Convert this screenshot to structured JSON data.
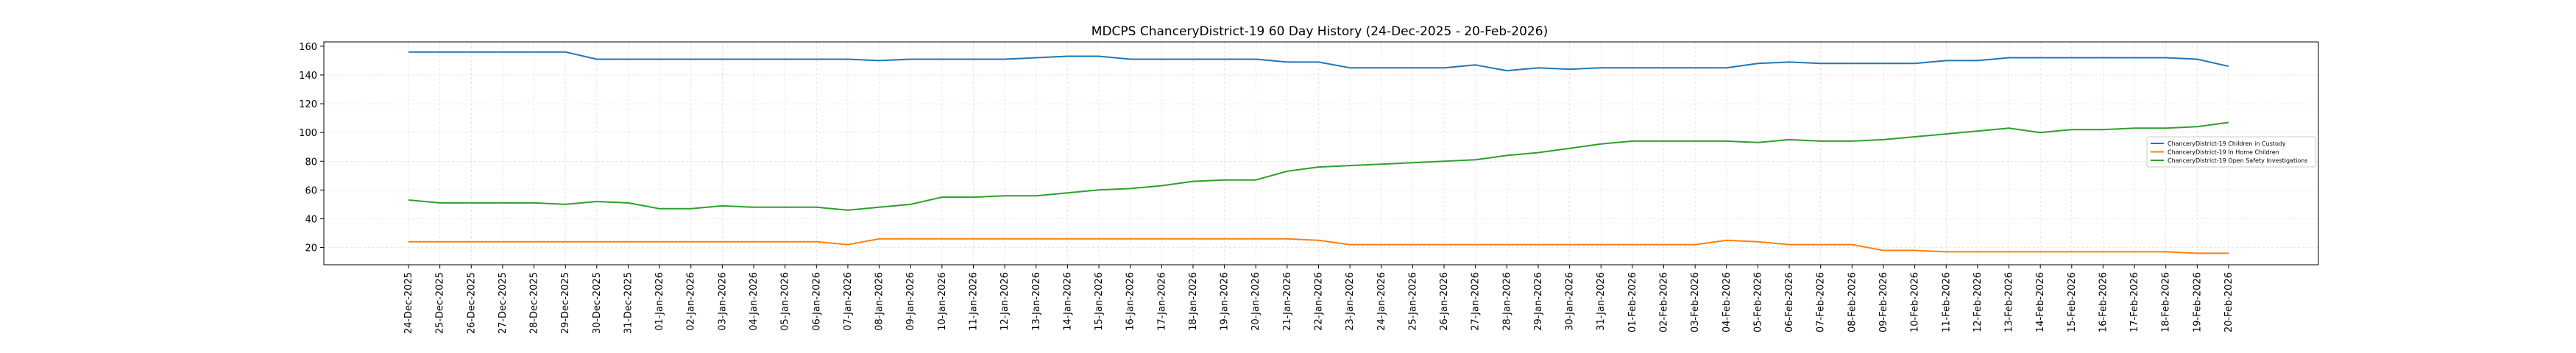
{
  "chart_data": {
    "type": "line",
    "title": "MDCPS ChanceryDistrict-19 60 Day History (24-Dec-2025 - 20-Feb-2026)",
    "xlabel": "",
    "ylabel": "",
    "ylim": [
      8,
      163
    ],
    "yticks": [
      20,
      40,
      60,
      80,
      100,
      120,
      140,
      160
    ],
    "grid": true,
    "legend_position": "center-right",
    "categories": [
      "24-Dec-2025",
      "25-Dec-2025",
      "26-Dec-2025",
      "27-Dec-2025",
      "28-Dec-2025",
      "29-Dec-2025",
      "30-Dec-2025",
      "31-Dec-2025",
      "01-Jan-2026",
      "02-Jan-2026",
      "03-Jan-2026",
      "04-Jan-2026",
      "05-Jan-2026",
      "06-Jan-2026",
      "07-Jan-2026",
      "08-Jan-2026",
      "09-Jan-2026",
      "10-Jan-2026",
      "11-Jan-2026",
      "12-Jan-2026",
      "13-Jan-2026",
      "14-Jan-2026",
      "15-Jan-2026",
      "16-Jan-2026",
      "17-Jan-2026",
      "18-Jan-2026",
      "19-Jan-2026",
      "20-Jan-2026",
      "21-Jan-2026",
      "22-Jan-2026",
      "23-Jan-2026",
      "24-Jan-2026",
      "25-Jan-2026",
      "26-Jan-2026",
      "27-Jan-2026",
      "28-Jan-2026",
      "29-Jan-2026",
      "30-Jan-2026",
      "31-Jan-2026",
      "01-Feb-2026",
      "02-Feb-2026",
      "03-Feb-2026",
      "04-Feb-2026",
      "05-Feb-2026",
      "06-Feb-2026",
      "07-Feb-2026",
      "08-Feb-2026",
      "09-Feb-2026",
      "10-Feb-2026",
      "11-Feb-2026",
      "12-Feb-2026",
      "13-Feb-2026",
      "14-Feb-2026",
      "15-Feb-2026",
      "16-Feb-2026",
      "17-Feb-2026",
      "18-Feb-2026",
      "19-Feb-2026",
      "20-Feb-2026"
    ],
    "series": [
      {
        "name": "ChanceryDistrict-19 Children in Custody",
        "color": "#1f77b4",
        "values": [
          156,
          156,
          156,
          156,
          156,
          156,
          151,
          151,
          151,
          151,
          151,
          151,
          151,
          151,
          151,
          150,
          151,
          151,
          151,
          151,
          152,
          153,
          153,
          151,
          151,
          151,
          151,
          151,
          149,
          149,
          145,
          145,
          145,
          145,
          147,
          143,
          145,
          144,
          145,
          145,
          145,
          145,
          145,
          148,
          149,
          148,
          148,
          148,
          148,
          150,
          150,
          152,
          152,
          152,
          152,
          152,
          152,
          151,
          146
        ]
      },
      {
        "name": "ChanceryDistrict-19 In Home Children",
        "color": "#ff7f0e",
        "values": [
          24,
          24,
          24,
          24,
          24,
          24,
          24,
          24,
          24,
          24,
          24,
          24,
          24,
          24,
          22,
          26,
          26,
          26,
          26,
          26,
          26,
          26,
          26,
          26,
          26,
          26,
          26,
          26,
          26,
          25,
          22,
          22,
          22,
          22,
          22,
          22,
          22,
          22,
          22,
          22,
          22,
          22,
          25,
          24,
          22,
          22,
          22,
          18,
          18,
          17,
          17,
          17,
          17,
          17,
          17,
          17,
          17,
          16,
          16
        ]
      },
      {
        "name": "ChanceryDistrict-19 Open Safety Investigations",
        "color": "#2ca02c",
        "values": [
          53,
          51,
          51,
          51,
          51,
          50,
          52,
          51,
          47,
          47,
          49,
          48,
          48,
          48,
          46,
          48,
          50,
          55,
          55,
          56,
          56,
          58,
          60,
          61,
          63,
          66,
          67,
          67,
          73,
          76,
          77,
          78,
          79,
          80,
          81,
          84,
          86,
          89,
          92,
          94,
          94,
          94,
          94,
          93,
          95,
          94,
          94,
          95,
          97,
          99,
          101,
          103,
          100,
          102,
          102,
          103,
          103,
          104,
          107
        ]
      }
    ]
  }
}
